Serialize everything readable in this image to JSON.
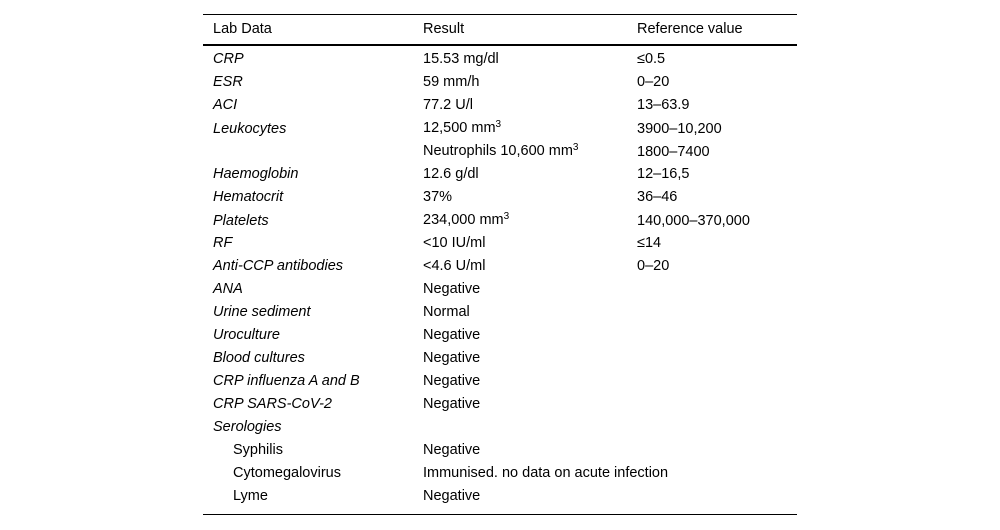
{
  "table": {
    "columns": [
      "Lab Data",
      "Result",
      "Reference value"
    ],
    "rows": [
      {
        "label": "CRP",
        "italic": true,
        "indent": 0,
        "result": "15.53 mg/dl",
        "result_sup": "",
        "reference": "≤0.5"
      },
      {
        "label": "ESR",
        "italic": true,
        "indent": 0,
        "result": "59 mm/h",
        "result_sup": "",
        "reference": "0–20"
      },
      {
        "label": "ACI",
        "italic": true,
        "indent": 0,
        "result": "77.2 U/l",
        "result_sup": "",
        "reference": "13–63.9"
      },
      {
        "label": "Leukocytes",
        "italic": true,
        "indent": 0,
        "result": "12,500 mm",
        "result_sup": "3",
        "reference": "3900–10,200"
      },
      {
        "label": "",
        "italic": false,
        "indent": 0,
        "result": "Neutrophils 10,600 mm",
        "result_sup": "3",
        "reference": "1800–7400"
      },
      {
        "label": "Haemoglobin",
        "italic": true,
        "indent": 0,
        "result": "12.6 g/dl",
        "result_sup": "",
        "reference": "12–16,5"
      },
      {
        "label": "Hematocrit",
        "italic": true,
        "indent": 0,
        "result": "37%",
        "result_sup": "",
        "reference": "36–46"
      },
      {
        "label": "Platelets",
        "italic": true,
        "indent": 0,
        "result": "234,000 mm",
        "result_sup": "3",
        "reference": "140,000–370,000"
      },
      {
        "label": "RF",
        "italic": true,
        "indent": 0,
        "result": "<10 IU/ml",
        "result_sup": "",
        "reference": "≤14"
      },
      {
        "label": "Anti-CCP antibodies",
        "italic": true,
        "indent": 0,
        "result": "<4.6 U/ml",
        "result_sup": "",
        "reference": "0–20"
      },
      {
        "label": "ANA",
        "italic": true,
        "indent": 0,
        "result": "Negative",
        "result_sup": "",
        "reference": ""
      },
      {
        "label": "Urine sediment",
        "italic": true,
        "indent": 0,
        "result": "Normal",
        "result_sup": "",
        "reference": ""
      },
      {
        "label": "Uroculture",
        "italic": true,
        "indent": 0,
        "result": "Negative",
        "result_sup": "",
        "reference": ""
      },
      {
        "label": "Blood cultures",
        "italic": true,
        "indent": 0,
        "result": "Negative",
        "result_sup": "",
        "reference": ""
      },
      {
        "label": "CRP influenza A and B",
        "italic": true,
        "indent": 0,
        "result": "Negative",
        "result_sup": "",
        "reference": ""
      },
      {
        "label": "CRP SARS-CoV-2",
        "italic": true,
        "indent": 0,
        "result": "Negative",
        "result_sup": "",
        "reference": ""
      },
      {
        "label": "Serologies",
        "italic": true,
        "indent": 0,
        "result": "",
        "result_sup": "",
        "reference": ""
      },
      {
        "label": "Syphilis",
        "italic": false,
        "indent": 1,
        "result": "Negative",
        "result_sup": "",
        "reference": ""
      },
      {
        "label": "Cytomegalovirus",
        "italic": false,
        "indent": 1,
        "result": "Immunised. no data on acute infection",
        "result_sup": "",
        "reference": ""
      },
      {
        "label": "Lyme",
        "italic": false,
        "indent": 1,
        "result": "Negative",
        "result_sup": "",
        "reference": ""
      }
    ]
  }
}
